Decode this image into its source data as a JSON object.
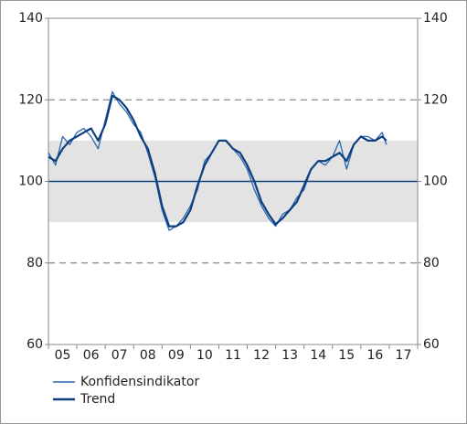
{
  "chart_data": {
    "type": "line",
    "x": [
      5.0,
      5.25,
      5.5,
      5.75,
      6.0,
      6.25,
      6.5,
      6.75,
      7.0,
      7.25,
      7.5,
      7.75,
      8.0,
      8.25,
      8.5,
      8.75,
      9.0,
      9.25,
      9.5,
      9.75,
      10.0,
      10.25,
      10.5,
      10.75,
      11.0,
      11.25,
      11.5,
      11.75,
      12.0,
      12.25,
      12.5,
      12.75,
      13.0,
      13.25,
      13.5,
      13.75,
      14.0,
      14.25,
      14.5,
      14.75,
      15.0,
      15.25,
      15.5,
      15.75,
      16.0,
      16.25,
      16.5,
      16.75,
      16.9
    ],
    "series": [
      {
        "name": "Konfidensindikator",
        "color": "#2a66b0",
        "width": 1.3,
        "values": [
          107,
          104,
          111,
          109,
          112,
          113,
          111,
          108,
          115,
          122,
          119,
          117,
          114,
          112,
          107,
          101,
          93,
          88,
          89,
          91,
          94,
          98,
          105,
          107,
          110,
          110,
          108,
          106,
          103,
          98,
          94,
          91,
          89,
          92,
          93,
          96,
          98,
          103,
          105,
          104,
          106,
          110,
          103,
          109,
          111,
          111,
          110,
          112,
          109
        ]
      },
      {
        "name": "Trend",
        "color": "#0d3f7e",
        "width": 2.2,
        "values": [
          106,
          105,
          108,
          110,
          111,
          112,
          113,
          110,
          114,
          121,
          120,
          118,
          115,
          111,
          108,
          102,
          94,
          89,
          89,
          90,
          93,
          99,
          104,
          107,
          110,
          110,
          108,
          107,
          104,
          100,
          95,
          92,
          89.5,
          91,
          93,
          95,
          99,
          103,
          105,
          105,
          106,
          107,
          105,
          109,
          111,
          110,
          110,
          111,
          110
        ]
      }
    ],
    "xlim": [
      5,
      18
    ],
    "xticks": [
      {
        "value": 5.5,
        "label": "05"
      },
      {
        "value": 6.5,
        "label": "06"
      },
      {
        "value": 7.5,
        "label": "07"
      },
      {
        "value": 8.5,
        "label": "08"
      },
      {
        "value": 9.5,
        "label": "09"
      },
      {
        "value": 10.5,
        "label": "10"
      },
      {
        "value": 11.5,
        "label": "11"
      },
      {
        "value": 12.5,
        "label": "12"
      },
      {
        "value": 13.5,
        "label": "13"
      },
      {
        "value": 14.5,
        "label": "14"
      },
      {
        "value": 15.5,
        "label": "15"
      },
      {
        "value": 16.5,
        "label": "16"
      },
      {
        "value": 17.5,
        "label": "17"
      }
    ],
    "ylim": [
      60,
      140
    ],
    "yticks": [
      60,
      80,
      100,
      120,
      140
    ],
    "y2lim": [
      60,
      140
    ],
    "y2ticks": [
      60,
      80,
      100,
      120,
      140
    ],
    "grid": true,
    "shaded_band": [
      90,
      110
    ],
    "reference_line": 100,
    "legend": "bottom-left"
  }
}
